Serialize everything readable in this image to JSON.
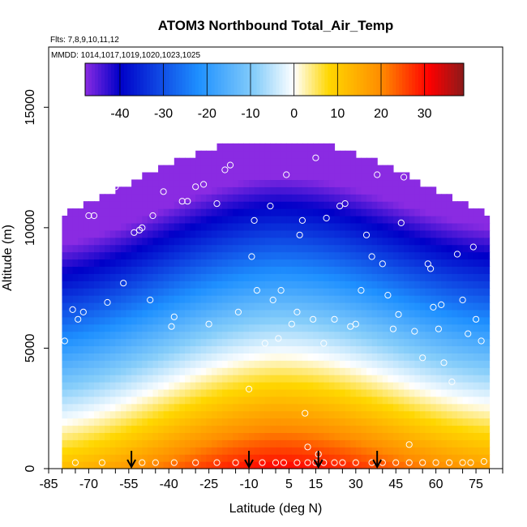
{
  "chart_data": {
    "type": "heatmap",
    "title": "ATOM3 Northbound Total_Air_Temp",
    "notes": [
      "Flts: 7,8,9,10,11,12",
      "MMDD: 1014,1017,1019,1020,1023,1025"
    ],
    "xlabel": "Latitude (deg N)",
    "ylabel": "Altitude (m)",
    "xlim": [
      -85,
      85
    ],
    "ylim": [
      0,
      17500
    ],
    "x_ticks": [
      -85,
      -70,
      -55,
      -40,
      -25,
      -10,
      5,
      15,
      30,
      45,
      60,
      75
    ],
    "y_ticks": [
      0,
      5000,
      10000,
      15000
    ],
    "colorbar": {
      "range": [
        -48,
        39
      ],
      "ticks": [
        -40,
        -30,
        -20,
        -10,
        0,
        10,
        20,
        30
      ],
      "colors": [
        "#8a2be2",
        "#0000c8",
        "#1e90ff",
        "#87cefa",
        "#ffffff",
        "#ffd700",
        "#ff8c00",
        "#ff0000",
        "#8b1a1a"
      ]
    },
    "arrows_latitude": [
      -54,
      -10,
      16,
      38
    ],
    "field": {
      "lat_range": [
        -80,
        80
      ],
      "surface_temp_equator": 31,
      "lapse_rate_per_km": 6.5,
      "top_altitude_equator": 13500,
      "top_altitude_pole": 10000
    },
    "sample_points": [
      [
        -82,
        7800
      ],
      [
        -79,
        5300
      ],
      [
        -76,
        6600
      ],
      [
        -74,
        6200
      ],
      [
        -72,
        6500
      ],
      [
        -70,
        10500
      ],
      [
        -68,
        10500
      ],
      [
        -63,
        6900
      ],
      [
        -60,
        11700
      ],
      [
        -57,
        7700
      ],
      [
        -53,
        9800
      ],
      [
        -51,
        9900
      ],
      [
        -50,
        10000
      ],
      [
        -47,
        7000
      ],
      [
        -46,
        10500
      ],
      [
        -42,
        11500
      ],
      [
        -39,
        5900
      ],
      [
        -38,
        6300
      ],
      [
        -35,
        11100
      ],
      [
        -33,
        11100
      ],
      [
        -30,
        11700
      ],
      [
        -27,
        11800
      ],
      [
        -25,
        6000
      ],
      [
        -22,
        11000
      ],
      [
        -19,
        12400
      ],
      [
        -17,
        12600
      ],
      [
        -14,
        6500
      ],
      [
        -10,
        3300
      ],
      [
        -9,
        8800
      ],
      [
        -8,
        10300
      ],
      [
        -7,
        7400
      ],
      [
        -4,
        5200
      ],
      [
        -2,
        10900
      ],
      [
        -1,
        7000
      ],
      [
        1,
        5400
      ],
      [
        2,
        7400
      ],
      [
        4,
        12200
      ],
      [
        6,
        6000
      ],
      [
        8,
        6500
      ],
      [
        9,
        9700
      ],
      [
        10,
        10300
      ],
      [
        11,
        2300
      ],
      [
        12,
        900
      ],
      [
        14,
        6200
      ],
      [
        15,
        12900
      ],
      [
        16,
        600
      ],
      [
        18,
        5200
      ],
      [
        19,
        10400
      ],
      [
        22,
        6200
      ],
      [
        24,
        10900
      ],
      [
        26,
        11000
      ],
      [
        28,
        5900
      ],
      [
        30,
        6000
      ],
      [
        32,
        7400
      ],
      [
        34,
        9700
      ],
      [
        36,
        8800
      ],
      [
        38,
        12200
      ],
      [
        40,
        8500
      ],
      [
        42,
        7200
      ],
      [
        44,
        5800
      ],
      [
        46,
        6400
      ],
      [
        47,
        10200
      ],
      [
        48,
        12100
      ],
      [
        50,
        1000
      ],
      [
        52,
        5700
      ],
      [
        55,
        4600
      ],
      [
        57,
        8500
      ],
      [
        58,
        8300
      ],
      [
        59,
        6700
      ],
      [
        61,
        5800
      ],
      [
        62,
        6800
      ],
      [
        63,
        4400
      ],
      [
        66,
        3600
      ],
      [
        68,
        8900
      ],
      [
        70,
        7000
      ],
      [
        72,
        5600
      ],
      [
        74,
        9200
      ],
      [
        75,
        6200
      ],
      [
        77,
        5300
      ],
      [
        78,
        300
      ]
    ],
    "surface_points": [
      -75,
      -65,
      -50,
      -45,
      -38,
      -30,
      -22,
      -15,
      -5,
      0,
      3,
      8,
      12,
      15,
      18,
      22,
      25,
      30,
      36,
      40,
      45,
      50,
      55,
      60,
      65,
      70,
      73
    ]
  }
}
